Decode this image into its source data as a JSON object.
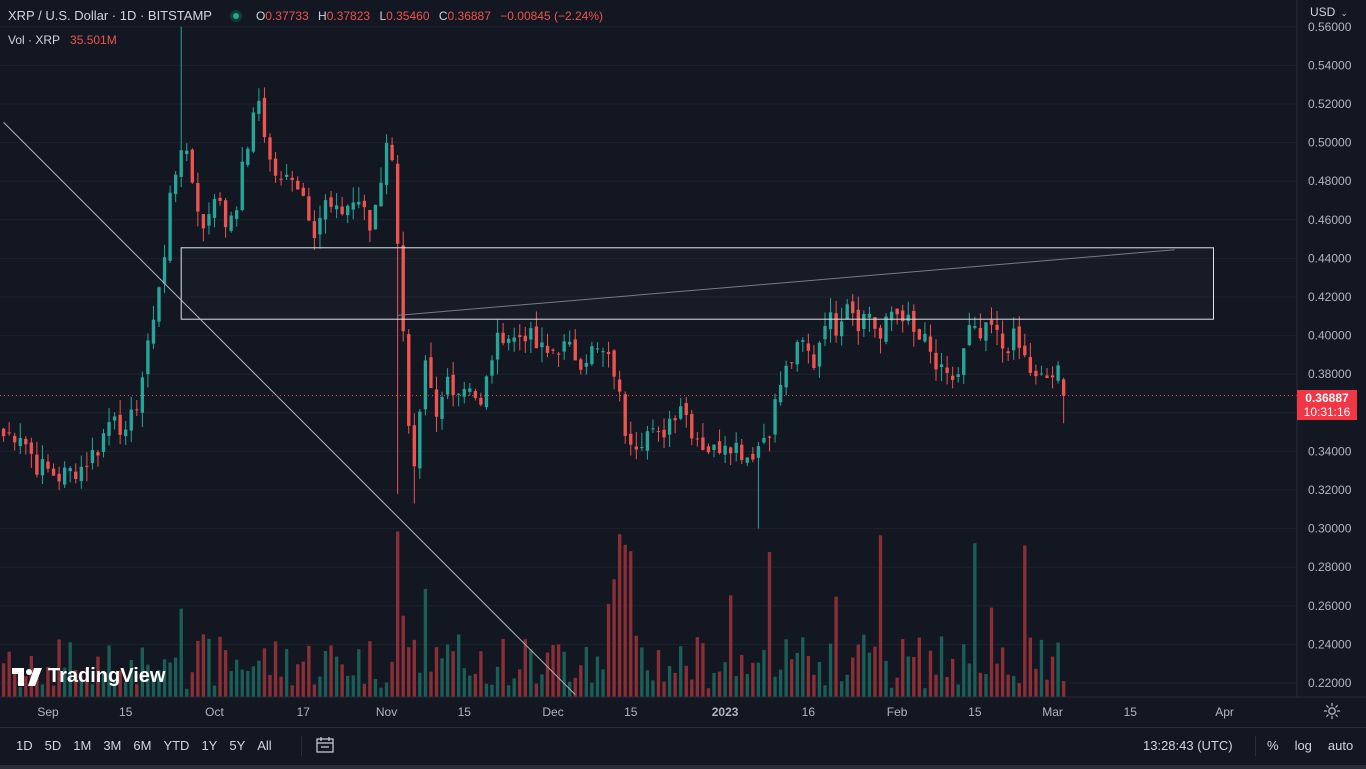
{
  "header": {
    "symbol_title": "XRP / U.S. Dollar · 1D · BITSTAMP",
    "ohlc": {
      "o_label": "O",
      "o_value": "0.37733",
      "h_label": "H",
      "h_value": "0.37823",
      "l_label": "L",
      "l_value": "0.35460",
      "c_label": "C",
      "c_value": "0.36887",
      "change": "−0.00845 (−2.24%)"
    },
    "volume_label": "Vol · XRP",
    "volume_value": "35.501M"
  },
  "currency": "USD",
  "price_tag": {
    "price": "0.36887",
    "countdown": "10:31:16"
  },
  "logo_text": "TradingView",
  "bottom_bar": {
    "ranges": [
      "1D",
      "5D",
      "1M",
      "3M",
      "6M",
      "YTD",
      "1Y",
      "5Y",
      "All"
    ],
    "clock": "13:28:43 (UTC)",
    "percent": "%",
    "log": "log",
    "auto": "auto"
  },
  "colors": {
    "background": "#131722",
    "up": "#26a69a",
    "down": "#ef5350",
    "up_volume": "#1b5e58",
    "down_volume": "#8a2f36",
    "grid": "#1e222d",
    "price_line": "#ef5350"
  },
  "chart_data": {
    "type": "candlestick",
    "symbol": "XRPUSD",
    "interval": "1D",
    "y_range": [
      0.214,
      0.562
    ],
    "y_ticks": [
      "0.22000",
      "0.24000",
      "0.26000",
      "0.28000",
      "0.30000",
      "0.32000",
      "0.34000",
      "0.36000",
      "0.38000",
      "0.40000",
      "0.42000",
      "0.44000",
      "0.46000",
      "0.48000",
      "0.50000",
      "0.52000",
      "0.54000",
      "0.56000"
    ],
    "x_ticks": [
      {
        "label": "Sep",
        "day": 0
      },
      {
        "label": "15",
        "day": 14
      },
      {
        "label": "Oct",
        "day": 30
      },
      {
        "label": "17",
        "day": 46
      },
      {
        "label": "Nov",
        "day": 61
      },
      {
        "label": "15",
        "day": 75
      },
      {
        "label": "Dec",
        "day": 91
      },
      {
        "label": "15",
        "day": 105
      },
      {
        "label": "2023",
        "day": 122
      },
      {
        "label": "16",
        "day": 137
      },
      {
        "label": "Feb",
        "day": 153
      },
      {
        "label": "15",
        "day": 167
      },
      {
        "label": "Mar",
        "day": 181
      },
      {
        "label": "15",
        "day": 195
      },
      {
        "label": "Apr",
        "day": 212
      }
    ],
    "last_price": 0.36887,
    "annotations": {
      "zone": {
        "from_day": 24,
        "to_day": 210,
        "low": 0.4085,
        "high": 0.4455
      },
      "resistance_line": {
        "day1": 63,
        "y1": 0.4105,
        "day2": 203,
        "y2": 0.4445
      },
      "descending_line": {
        "day1": -8,
        "y1": 0.5105,
        "day2": 95,
        "y2": 0.214
      }
    },
    "price_path": [
      {
        "day": -8,
        "close": 0.348
      },
      {
        "day": -5,
        "close": 0.35
      },
      {
        "day": -2,
        "close": 0.333
      },
      {
        "day": 2,
        "close": 0.327
      },
      {
        "day": 6,
        "close": 0.332
      },
      {
        "day": 9,
        "close": 0.342
      },
      {
        "day": 12,
        "close": 0.362
      },
      {
        "day": 14,
        "close": 0.346
      },
      {
        "day": 16,
        "close": 0.366
      },
      {
        "day": 18,
        "close": 0.392
      },
      {
        "day": 19,
        "close": 0.412
      },
      {
        "day": 21,
        "close": 0.44
      },
      {
        "day": 22,
        "close": 0.472
      },
      {
        "day": 24,
        "close": 0.5
      },
      {
        "day": 26,
        "close": 0.48
      },
      {
        "day": 28,
        "close": 0.455
      },
      {
        "day": 30,
        "close": 0.475
      },
      {
        "day": 32,
        "close": 0.458
      },
      {
        "day": 34,
        "close": 0.47
      },
      {
        "day": 36,
        "close": 0.5
      },
      {
        "day": 38,
        "close": 0.522
      },
      {
        "day": 40,
        "close": 0.49
      },
      {
        "day": 42,
        "close": 0.478
      },
      {
        "day": 44,
        "close": 0.485
      },
      {
        "day": 46,
        "close": 0.473
      },
      {
        "day": 48,
        "close": 0.456
      },
      {
        "day": 50,
        "close": 0.468
      },
      {
        "day": 52,
        "close": 0.462
      },
      {
        "day": 54,
        "close": 0.468
      },
      {
        "day": 56,
        "close": 0.47
      },
      {
        "day": 58,
        "close": 0.455
      },
      {
        "day": 60,
        "close": 0.482
      },
      {
        "day": 61,
        "close": 0.503
      },
      {
        "day": 62,
        "close": 0.488
      },
      {
        "day": 63,
        "close": 0.452
      },
      {
        "day": 64,
        "close": 0.405
      },
      {
        "day": 65,
        "close": 0.35
      },
      {
        "day": 66,
        "close": 0.328
      },
      {
        "day": 68,
        "close": 0.382
      },
      {
        "day": 70,
        "close": 0.355
      },
      {
        "day": 72,
        "close": 0.378
      },
      {
        "day": 74,
        "close": 0.372
      },
      {
        "day": 76,
        "close": 0.376
      },
      {
        "day": 78,
        "close": 0.362
      },
      {
        "day": 80,
        "close": 0.39
      },
      {
        "day": 82,
        "close": 0.402
      },
      {
        "day": 84,
        "close": 0.398
      },
      {
        "day": 86,
        "close": 0.402
      },
      {
        "day": 88,
        "close": 0.394
      },
      {
        "day": 90,
        "close": 0.39
      },
      {
        "day": 92,
        "close": 0.395
      },
      {
        "day": 94,
        "close": 0.392
      },
      {
        "day": 96,
        "close": 0.388
      },
      {
        "day": 98,
        "close": 0.392
      },
      {
        "day": 100,
        "close": 0.39
      },
      {
        "day": 102,
        "close": 0.382
      },
      {
        "day": 104,
        "close": 0.352
      },
      {
        "day": 106,
        "close": 0.346
      },
      {
        "day": 108,
        "close": 0.35
      },
      {
        "day": 110,
        "close": 0.346
      },
      {
        "day": 112,
        "close": 0.357
      },
      {
        "day": 114,
        "close": 0.366
      },
      {
        "day": 116,
        "close": 0.352
      },
      {
        "day": 118,
        "close": 0.344
      },
      {
        "day": 120,
        "close": 0.34
      },
      {
        "day": 122,
        "close": 0.347
      },
      {
        "day": 124,
        "close": 0.343
      },
      {
        "day": 126,
        "close": 0.338
      },
      {
        "day": 128,
        "close": 0.343
      },
      {
        "day": 130,
        "close": 0.353
      },
      {
        "day": 132,
        "close": 0.375
      },
      {
        "day": 134,
        "close": 0.388
      },
      {
        "day": 136,
        "close": 0.395
      },
      {
        "day": 138,
        "close": 0.386
      },
      {
        "day": 140,
        "close": 0.41
      },
      {
        "day": 142,
        "close": 0.405
      },
      {
        "day": 144,
        "close": 0.42
      },
      {
        "day": 146,
        "close": 0.408
      },
      {
        "day": 148,
        "close": 0.412
      },
      {
        "day": 150,
        "close": 0.398
      },
      {
        "day": 152,
        "close": 0.412
      },
      {
        "day": 154,
        "close": 0.412
      },
      {
        "day": 156,
        "close": 0.4
      },
      {
        "day": 158,
        "close": 0.396
      },
      {
        "day": 160,
        "close": 0.383
      },
      {
        "day": 162,
        "close": 0.376
      },
      {
        "day": 164,
        "close": 0.38
      },
      {
        "day": 166,
        "close": 0.402
      },
      {
        "day": 168,
        "close": 0.398
      },
      {
        "day": 170,
        "close": 0.404
      },
      {
        "day": 172,
        "close": 0.394
      },
      {
        "day": 174,
        "close": 0.398
      },
      {
        "day": 176,
        "close": 0.388
      },
      {
        "day": 178,
        "close": 0.376
      },
      {
        "day": 180,
        "close": 0.378
      },
      {
        "day": 182,
        "close": 0.38
      },
      {
        "day": 183,
        "close": 0.36887
      }
    ]
  }
}
